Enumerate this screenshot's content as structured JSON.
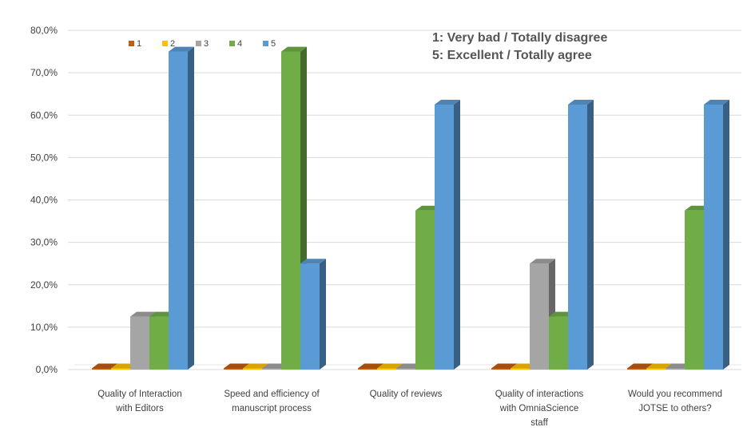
{
  "chart_data": {
    "type": "bar",
    "categories": [
      [
        "Quality of Interaction",
        "with Editors"
      ],
      [
        "Speed and efficiency of",
        "manuscript process"
      ],
      [
        "Quality of reviews"
      ],
      [
        "Quality of interactions",
        "with OmniaScience",
        "staff"
      ],
      [
        "Would you recommend",
        "JOTSE to others?"
      ]
    ],
    "series": [
      {
        "name": "1",
        "color": "#c55a11",
        "values": [
          0,
          0,
          0,
          0,
          0
        ]
      },
      {
        "name": "2",
        "color": "#ffc000",
        "values": [
          0,
          0,
          0,
          0,
          0
        ]
      },
      {
        "name": "3",
        "color": "#a5a5a5",
        "values": [
          12.5,
          0,
          0,
          25,
          0
        ]
      },
      {
        "name": "4",
        "color": "#70ad47",
        "values": [
          12.5,
          75,
          37.5,
          12.5,
          37.5
        ]
      },
      {
        "name": "5",
        "color": "#5b9bd5",
        "values": [
          75,
          25,
          62.5,
          62.5,
          62.5
        ]
      }
    ],
    "yticks": [
      "0,0%",
      "10,0%",
      "20,0%",
      "30,0%",
      "40,0%",
      "50,0%",
      "60,0%",
      "70,0%",
      "80,0%"
    ],
    "ylim": [
      0,
      80
    ],
    "grid": true,
    "legend_position": "top-left",
    "annotations": [
      "1: Very bad / Totally disagree",
      "5: Excellent / Totally agree"
    ]
  }
}
